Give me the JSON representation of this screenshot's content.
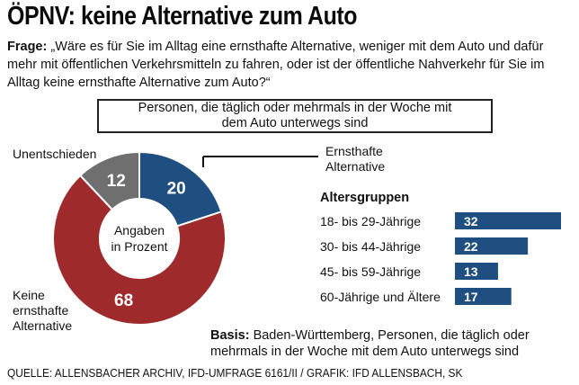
{
  "title": "ÖPNV: keine Alternative zum Auto",
  "question": {
    "prefix": "Frage:",
    "text": "„Wäre es für Sie im Alltag eine ernsthafte Alternative, weniger mit dem Auto und dafür mehr mit öffentlichen Verkehrsmitteln zu fahren, oder ist der öffentliche Nahverkehr für Sie im Alltag keine ernsthafte Alternative zum Auto?“"
  },
  "group_box": "Personen, die täglich oder mehrmals in der Woche mit dem Auto unterwegs sind",
  "basis": {
    "prefix": "Basis:",
    "text": "Baden-Württemberg, Personen, die täglich oder mehrmals in der Woche mit dem Auto unterwegs sind"
  },
  "source": "QUELLE: ALLENSBACHER ARCHIV, IFD-UMFRAGE 6161/II / GRAFIK: IFD ALLENSBACH, SK",
  "colors": {
    "blue": "#1f4e80",
    "red": "#9e2a2b",
    "gray": "#6f6f6f"
  },
  "chart_data": [
    {
      "type": "pie",
      "center_label": [
        "Angaben",
        "in Prozent"
      ],
      "slices": [
        {
          "label": "Ernsthafte Alternative",
          "value": 20,
          "color": "#1f4e80"
        },
        {
          "label": "Keine ernsthafte Alternative",
          "value": 68,
          "color": "#9e2a2b"
        },
        {
          "label": "Unentschieden",
          "value": 12,
          "color": "#6f6f6f"
        }
      ]
    },
    {
      "type": "bar",
      "title": "Altersgruppen",
      "categories": [
        "18- bis 29-Jährige",
        "30- bis 44-Jährige",
        "45- bis 59-Jährige",
        "60-Jährige und Ältere"
      ],
      "values": [
        32,
        22,
        13,
        17
      ],
      "color": "#1f4e80"
    }
  ]
}
